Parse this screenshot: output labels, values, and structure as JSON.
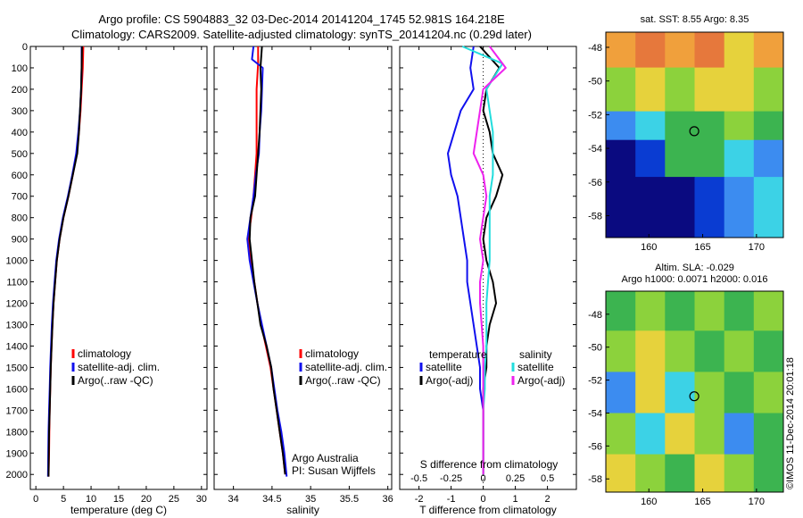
{
  "header": {
    "line1": "Argo profile: CS 5904883_32 03-Dec-2014 20141204_1745 52.981S 164.218E",
    "line2": "Climatology: CARS2009. Satellite-adjusted climatology: synTS_20141204.nc (0.29d later)"
  },
  "colors": {
    "climatology": "#ff0000",
    "satellite": "#1010ee",
    "argo": "#000000",
    "sal_satellite": "#22dddd",
    "sal_argo": "#ee22ee",
    "zero_line": "#000000"
  },
  "chart_data": [
    {
      "type": "line",
      "panel": "temperature",
      "xlabel": "temperature (deg C)",
      "ylabel": "",
      "xlim": [
        -1,
        31
      ],
      "ylim": [
        2070,
        0
      ],
      "xticks": [
        0,
        5,
        10,
        15,
        20,
        25,
        30
      ],
      "yticks": [
        0,
        100,
        200,
        300,
        400,
        500,
        600,
        700,
        800,
        900,
        1000,
        1100,
        1200,
        1300,
        1400,
        1500,
        1600,
        1700,
        1800,
        1900,
        2000
      ],
      "grid": false,
      "legend": "center-left",
      "legend_entries": [
        "climatology",
        "satellite-adj. clim.",
        "Argo(..raw -QC)"
      ],
      "series": [
        {
          "name": "climatology",
          "color_key": "climatology",
          "x": [
            8.6,
            8.5,
            8.3,
            8.1,
            7.8,
            7.4,
            6.7,
            5.9,
            5.0,
            4.3,
            3.8,
            3.5,
            3.2,
            3.0,
            2.85,
            2.7,
            2.6,
            2.5,
            2.45,
            2.4,
            2.3
          ],
          "y": [
            0,
            100,
            200,
            300,
            400,
            500,
            600,
            700,
            800,
            900,
            1000,
            1100,
            1200,
            1300,
            1400,
            1500,
            1600,
            1700,
            1800,
            1900,
            2010
          ]
        },
        {
          "name": "satellite-adj. clim.",
          "color_key": "satellite",
          "x": [
            8.3,
            8.3,
            8.2,
            8.0,
            7.7,
            7.3,
            6.6,
            5.8,
            4.9,
            4.2,
            3.7,
            3.4,
            3.1,
            2.9,
            2.75,
            2.6,
            2.5,
            2.4,
            2.3,
            2.25,
            2.2
          ],
          "y": [
            0,
            100,
            200,
            300,
            400,
            500,
            600,
            700,
            800,
            900,
            1000,
            1100,
            1200,
            1300,
            1400,
            1500,
            1600,
            1700,
            1800,
            1900,
            2010
          ]
        },
        {
          "name": "Argo(..raw -QC)",
          "color_key": "argo",
          "x": [
            8.35,
            8.3,
            8.2,
            8.0,
            7.8,
            7.5,
            6.7,
            5.9,
            5.0,
            4.3,
            3.8,
            3.5,
            3.2,
            3.0,
            2.85,
            2.7,
            2.6,
            2.5,
            2.4,
            2.35,
            2.3
          ],
          "y": [
            0,
            100,
            200,
            300,
            400,
            500,
            600,
            700,
            800,
            900,
            1000,
            1100,
            1200,
            1300,
            1400,
            1500,
            1600,
            1700,
            1800,
            1900,
            2010
          ]
        }
      ]
    },
    {
      "type": "line",
      "panel": "salinity",
      "xlabel": "salinity",
      "ylabel": "",
      "xlim": [
        33.75,
        36.05
      ],
      "ylim": [
        2070,
        0
      ],
      "xticks": [
        34,
        34.5,
        35,
        35.5,
        36
      ],
      "grid": false,
      "legend": "center-right",
      "legend_entries": [
        "climatology",
        "satellite-adj. clim.",
        "Argo(..raw -QC)"
      ],
      "annotation_lines": [
        "Argo Australia",
        "PI: Susan Wijffels"
      ],
      "series": [
        {
          "name": "climatology",
          "color_key": "climatology",
          "x": [
            34.32,
            34.32,
            34.3,
            34.3,
            34.3,
            34.3,
            34.28,
            34.26,
            34.23,
            34.19,
            34.22,
            34.27,
            34.31,
            34.36,
            34.42,
            34.48,
            34.52,
            34.56,
            34.6,
            34.64,
            34.67
          ],
          "y": [
            0,
            80,
            200,
            300,
            400,
            500,
            600,
            700,
            800,
            900,
            1000,
            1100,
            1200,
            1300,
            1400,
            1500,
            1600,
            1700,
            1800,
            1900,
            2000
          ]
        },
        {
          "name": "satellite-adj. clim.",
          "color_key": "satellite",
          "x": [
            34.26,
            34.24,
            34.38,
            34.36,
            34.34,
            34.33,
            34.29,
            34.26,
            34.22,
            34.18,
            34.21,
            34.26,
            34.31,
            34.37,
            34.43,
            34.49,
            34.53,
            34.57,
            34.62,
            34.66,
            34.69
          ],
          "y": [
            0,
            60,
            100,
            300,
            400,
            500,
            600,
            700,
            800,
            900,
            1000,
            1100,
            1200,
            1300,
            1400,
            1500,
            1600,
            1700,
            1800,
            1900,
            2010
          ]
        },
        {
          "name": "Argo(..raw -QC)",
          "color_key": "argo",
          "x": [
            34.37,
            34.35,
            34.36,
            34.35,
            34.34,
            34.32,
            34.3,
            34.28,
            34.22,
            34.21,
            34.24,
            34.27,
            34.31,
            34.35,
            34.43,
            34.49,
            34.52,
            34.56,
            34.6,
            34.64,
            34.67
          ],
          "y": [
            0,
            100,
            200,
            300,
            400,
            500,
            600,
            700,
            800,
            900,
            1000,
            1100,
            1200,
            1300,
            1400,
            1500,
            1600,
            1700,
            1800,
            1900,
            2000
          ]
        }
      ]
    },
    {
      "type": "line",
      "panel": "difference",
      "xlabel": "T difference from climatology",
      "x2label": "S difference from climatology",
      "xlim": [
        -2.6,
        2.9
      ],
      "ylim": [
        2070,
        0
      ],
      "xticks": [
        -2,
        -1,
        0,
        1,
        2
      ],
      "x2ticks": [
        "-0.5",
        "-0.25",
        "0",
        "0.25",
        "0.5"
      ],
      "x2tick_T_equiv": [
        -2,
        -1,
        0,
        1,
        2
      ],
      "grid": false,
      "legend": "center",
      "legend_headers": [
        "temperature",
        "salinity"
      ],
      "legend_entries": [
        "satellite",
        "Argo(-adj)",
        "satellite",
        "Argo(-adj)"
      ],
      "series": [
        {
          "name": "satellite",
          "group": "temperature",
          "color_key": "satellite",
          "x": [
            -0.3,
            -0.4,
            -0.3,
            -0.7,
            -0.9,
            -1.1,
            -1.0,
            -0.8,
            -0.7,
            -0.6,
            -0.5,
            -0.5,
            -0.4,
            -0.3,
            -0.2,
            -0.1,
            -0.1,
            0.0,
            0.0,
            0.0,
            0.0
          ],
          "y": [
            0,
            100,
            200,
            300,
            400,
            500,
            600,
            700,
            800,
            900,
            1000,
            1100,
            1200,
            1300,
            1400,
            1500,
            1600,
            1700,
            1800,
            1900,
            2000
          ]
        },
        {
          "name": "Argo(-adj)",
          "group": "temperature",
          "color_key": "argo",
          "x": [
            -0.1,
            0.5,
            0.1,
            0.0,
            0.2,
            0.3,
            0.6,
            0.4,
            0.1,
            0.0,
            0.1,
            0.3,
            0.4,
            0.2,
            0.1,
            0.1,
            0.0,
            0.0,
            0.0,
            0.0,
            0.0
          ],
          "y": [
            0,
            100,
            200,
            300,
            400,
            500,
            600,
            700,
            800,
            900,
            1000,
            1100,
            1200,
            1300,
            1400,
            1500,
            1600,
            1700,
            1800,
            1900,
            2000
          ]
        },
        {
          "name": "satellite",
          "group": "salinity",
          "color_key": "sal_satellite",
          "x": [
            -0.65,
            0.6,
            0.1,
            0.2,
            0.3,
            0.3,
            0.3,
            0.2,
            0.2,
            0.2,
            0.2,
            0.15,
            0.1,
            0.1,
            0.1,
            0.05,
            0.05,
            0.0,
            0.0,
            0.0,
            0.0
          ],
          "y": [
            0,
            80,
            200,
            300,
            400,
            500,
            600,
            700,
            800,
            900,
            1000,
            1100,
            1200,
            1300,
            1400,
            1500,
            1600,
            1700,
            1800,
            1900,
            2000
          ]
        },
        {
          "name": "Argo(-adj)",
          "group": "salinity",
          "color_key": "sal_argo",
          "x": [
            0.2,
            0.7,
            0.0,
            -0.1,
            -0.2,
            -0.3,
            0.0,
            0.1,
            0.0,
            -0.1,
            0.0,
            -0.1,
            -0.1,
            -0.05,
            0.0,
            0.0,
            0.0,
            0.0,
            0.0,
            0.0,
            0.0
          ],
          "y": [
            0,
            100,
            200,
            300,
            400,
            500,
            600,
            700,
            800,
            900,
            1000,
            1100,
            1200,
            1300,
            1400,
            1500,
            1600,
            1700,
            1800,
            1900,
            2000
          ]
        }
      ]
    },
    {
      "type": "heatmap",
      "panel": "sst-map",
      "title": "sat. SST: 8.55 Argo: 8.35",
      "xlim": [
        156,
        172.5
      ],
      "ylim": [
        -59.3,
        -47.1
      ],
      "xticks": [
        160,
        165,
        170
      ],
      "yticks": [
        -48,
        -50,
        -52,
        -54,
        -56,
        -58
      ],
      "float_position": [
        164.218,
        -52.981
      ],
      "palette": [
        "#0a0a80",
        "#0a3cd2",
        "#3c8cf0",
        "#3cd2e6",
        "#3cb450",
        "#8cd23c",
        "#e6d23c",
        "#f0a03c",
        "#e6783c"
      ],
      "zones": [
        {
          "lat_from": -47.1,
          "lat_to": -49.2,
          "levels": [
            7,
            8,
            7,
            8,
            6,
            7
          ]
        },
        {
          "lat_from": -49.2,
          "lat_to": -51.8,
          "levels": [
            5,
            6,
            5,
            6,
            6,
            5
          ]
        },
        {
          "lat_from": -51.8,
          "lat_to": -53.5,
          "levels": [
            2,
            3,
            4,
            4,
            5,
            4
          ]
        },
        {
          "lat_from": -53.5,
          "lat_to": -55.7,
          "levels": [
            0,
            1,
            4,
            4,
            3,
            2
          ]
        },
        {
          "lat_from": -55.7,
          "lat_to": -59.3,
          "levels": [
            0,
            0,
            0,
            1,
            2,
            3
          ]
        }
      ]
    },
    {
      "type": "heatmap",
      "panel": "sla-map",
      "title": "Altim. SLA: -0.029",
      "subtitle": "Argo h1000: 0.0071 h2000: 0.016",
      "xlim": [
        156,
        172.5
      ],
      "ylim": [
        -58.8,
        -46.6
      ],
      "xticks": [
        160,
        165,
        170
      ],
      "yticks": [
        -48,
        -50,
        -52,
        -54,
        -56,
        -58
      ],
      "float_position": [
        164.218,
        -52.981
      ],
      "palette": [
        "#1e46c8",
        "#3c8cf0",
        "#3cd2e6",
        "#3cb450",
        "#8cd23c",
        "#e6d23c",
        "#f0a03c"
      ],
      "zones": [
        {
          "lat_from": -46.6,
          "lat_to": -49.0,
          "levels": [
            3,
            4,
            3,
            4,
            3,
            4
          ]
        },
        {
          "lat_from": -49.0,
          "lat_to": -51.5,
          "levels": [
            4,
            5,
            4,
            3,
            4,
            3
          ]
        },
        {
          "lat_from": -51.5,
          "lat_to": -54.0,
          "levels": [
            1,
            5,
            2,
            4,
            3,
            4
          ]
        },
        {
          "lat_from": -54.0,
          "lat_to": -56.5,
          "levels": [
            4,
            2,
            5,
            4,
            1,
            3
          ]
        },
        {
          "lat_from": -56.5,
          "lat_to": -58.8,
          "levels": [
            5,
            4,
            3,
            5,
            4,
            3
          ]
        }
      ]
    }
  ],
  "side_label": "©IMOS 11-Dec-2014 20:01:18"
}
